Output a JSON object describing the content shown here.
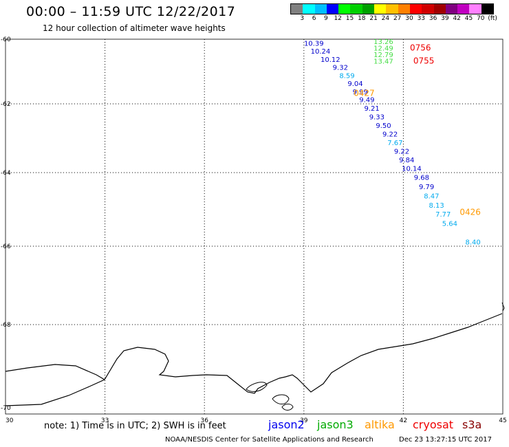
{
  "header": {
    "title": "00:00 – 11:59 UTC 12/22/2017",
    "subtitle": "12 hour collection of altimeter wave heights"
  },
  "colorbar": {
    "colors": [
      "#808080",
      "#00ffff",
      "#00bfff",
      "#0000ff",
      "#00ff00",
      "#00d000",
      "#00a000",
      "#ffff00",
      "#ffc000",
      "#ff8000",
      "#ff0000",
      "#d00000",
      "#a00000",
      "#800080",
      "#c000c0",
      "#ff80ff",
      "#000000"
    ],
    "labels": [
      "3",
      "6",
      "9",
      "12",
      "15",
      "18",
      "21",
      "24",
      "27",
      "30",
      "33",
      "36",
      "39",
      "42",
      "45",
      "70",
      "(ft)"
    ]
  },
  "map": {
    "lon_ticks": [
      "30",
      "33",
      "36",
      "39",
      "42",
      "45"
    ],
    "lat_ticks": [
      "-60",
      "-62",
      "-64",
      "-66",
      "-68",
      "-70"
    ],
    "lon_range": [
      30,
      45
    ],
    "lat_range": [
      -60,
      -70
    ],
    "coastline_label": "Antarctic coastline"
  },
  "chart_data": {
    "type": "scatter",
    "xlabel": "",
    "ylabel": "",
    "series": [
      {
        "name": "jason2",
        "color": "#0000cc",
        "points": [
          {
            "lon": 39.3,
            "lat": -60.2,
            "value": "10.39"
          },
          {
            "lon": 39.5,
            "lat": -60.45,
            "value": "10.24"
          },
          {
            "lon": 39.8,
            "lat": -60.7,
            "value": "10.12"
          },
          {
            "lon": 40.1,
            "lat": -60.95,
            "value": "9.32"
          },
          {
            "lon": 40.3,
            "lat": -61.2,
            "value": "8.59",
            "color": "#00aaee"
          },
          {
            "lon": 40.55,
            "lat": -61.45,
            "value": "9.04"
          },
          {
            "lon": 40.7,
            "lat": -61.7,
            "value": "9.99"
          },
          {
            "lon": 40.9,
            "lat": -61.95,
            "value": "9.49"
          },
          {
            "lon": 41.05,
            "lat": -62.2,
            "value": "9.21"
          },
          {
            "lon": 41.2,
            "lat": -62.45,
            "value": "9.33"
          },
          {
            "lon": 41.4,
            "lat": -62.7,
            "value": "9.50"
          },
          {
            "lon": 41.6,
            "lat": -62.95,
            "value": "9.22"
          },
          {
            "lon": 41.75,
            "lat": -63.2,
            "value": "7.67",
            "color": "#00aaee"
          },
          {
            "lon": 41.95,
            "lat": -63.45,
            "value": "9.22"
          },
          {
            "lon": 42.1,
            "lat": -63.7,
            "value": "9.84"
          },
          {
            "lon": 42.25,
            "lat": -63.95,
            "value": "10.14"
          },
          {
            "lon": 42.55,
            "lat": -64.2,
            "value": "9.68"
          },
          {
            "lon": 42.7,
            "lat": -64.45,
            "value": "9.79"
          },
          {
            "lon": 42.85,
            "lat": -64.7,
            "value": "8.47",
            "color": "#00aaee"
          },
          {
            "lon": 43.0,
            "lat": -64.95,
            "value": "8.13",
            "color": "#00aaee"
          },
          {
            "lon": 43.2,
            "lat": -65.2,
            "value": "7.77",
            "color": "#00aaee"
          },
          {
            "lon": 43.4,
            "lat": -65.45,
            "value": "5.64",
            "color": "#00aaee"
          },
          {
            "lon": 44.1,
            "lat": -65.95,
            "value": "8.40",
            "color": "#00aaee"
          }
        ]
      },
      {
        "name": "jason3",
        "color": "#44dd44",
        "points": [
          {
            "lon": 41.4,
            "lat": -60.15,
            "value": "13.26"
          },
          {
            "lon": 41.4,
            "lat": -60.35,
            "value": "12.49"
          },
          {
            "lon": 41.4,
            "lat": -60.55,
            "value": "12.79"
          },
          {
            "lon": 41.4,
            "lat": -60.75,
            "value": "13.47"
          }
        ]
      }
    ],
    "time_labels": [
      {
        "lon": 42.2,
        "lat": -60.35,
        "value": "0756",
        "color": "#ee0000"
      },
      {
        "lon": 42.3,
        "lat": -60.75,
        "value": "0755",
        "color": "#ee0000"
      },
      {
        "lon": 40.5,
        "lat": -61.75,
        "value": "0427",
        "color": "#ff9900"
      },
      {
        "lon": 43.7,
        "lat": -65.15,
        "value": "0426",
        "color": "#ff9900"
      }
    ]
  },
  "footer": {
    "note": "note: 1) Time is in UTC; 2) SWH is in feet",
    "satellites": [
      {
        "name": "jason2",
        "color": "#0000ee"
      },
      {
        "name": "jason3",
        "color": "#00aa00"
      },
      {
        "name": "altika",
        "color": "#ff9900"
      },
      {
        "name": "cryosat",
        "color": "#ee0000"
      },
      {
        "name": "s3a",
        "color": "#880000"
      }
    ],
    "credit": "NOAA/NESDIS Center for Satellite Applications and Research",
    "timestamp": "Dec 23 13:27:15 UTC 2017"
  }
}
